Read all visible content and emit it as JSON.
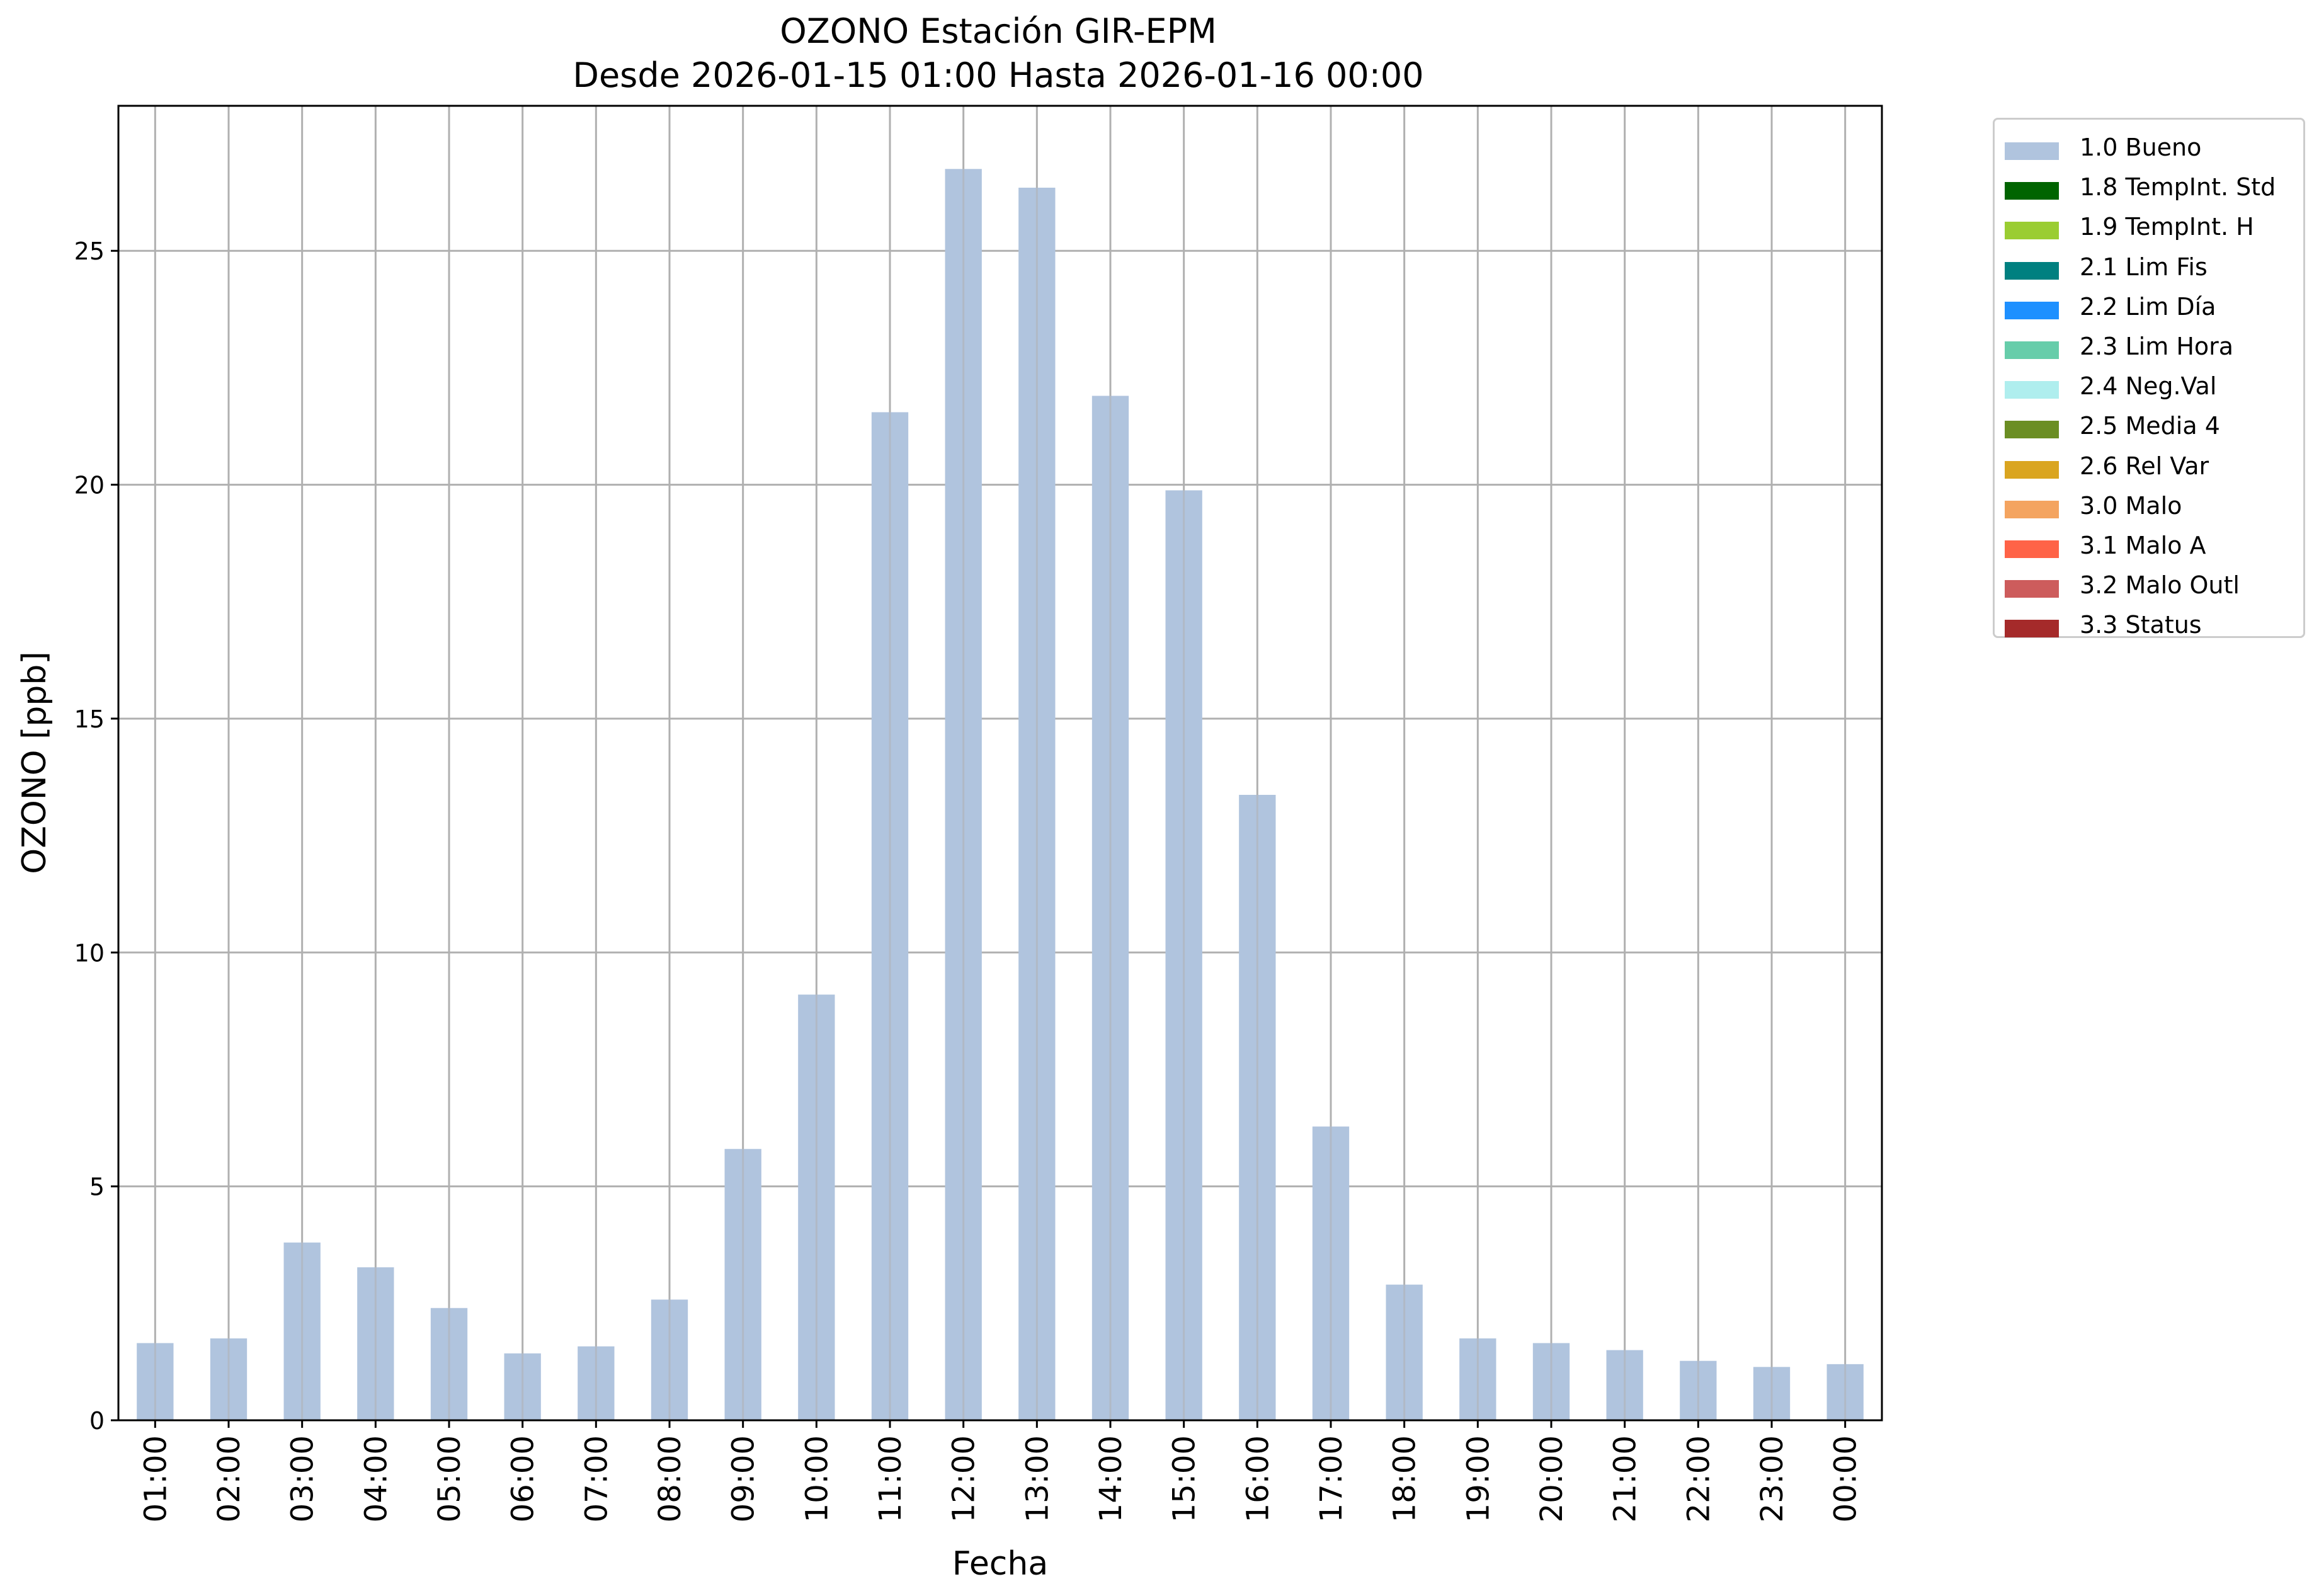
{
  "chart_data": {
    "type": "bar",
    "title": "OZONO Estación GIR-EPM",
    "subtitle": "Desde 2026-01-15 01:00 Hasta 2026-01-16 00:00",
    "xlabel": "Fecha",
    "ylabel": "OZONO [ppb]",
    "ylim": [
      0,
      28.1
    ],
    "yticks": [
      0,
      5,
      10,
      15,
      20,
      25
    ],
    "grid": true,
    "legend_position": "outside-top-right",
    "categories": [
      "01:00",
      "02:00",
      "03:00",
      "04:00",
      "05:00",
      "06:00",
      "07:00",
      "08:00",
      "09:00",
      "10:00",
      "11:00",
      "12:00",
      "13:00",
      "14:00",
      "15:00",
      "16:00",
      "17:00",
      "18:00",
      "19:00",
      "20:00",
      "21:00",
      "22:00",
      "23:00",
      "00:00"
    ],
    "series": [
      {
        "name": "1.0 Bueno",
        "color": "#b0c4de",
        "values": [
          1.65,
          1.75,
          3.8,
          3.27,
          2.4,
          1.43,
          1.58,
          2.58,
          5.8,
          9.1,
          21.55,
          26.75,
          26.35,
          21.9,
          19.88,
          13.37,
          6.28,
          2.9,
          1.75,
          1.65,
          1.5,
          1.27,
          1.14,
          1.2
        ]
      }
    ],
    "legend": [
      {
        "label": "1.0 Bueno",
        "color": "#b0c4de"
      },
      {
        "label": "1.8 TempInt. Std",
        "color": "#006400"
      },
      {
        "label": "1.9 TempInt. H",
        "color": "#9acd32"
      },
      {
        "label": "2.1 Lim Fis",
        "color": "#008080"
      },
      {
        "label": "2.2 Lim Día",
        "color": "#1e90ff"
      },
      {
        "label": "2.3 Lim Hora",
        "color": "#66cdaa"
      },
      {
        "label": "2.4 Neg.Val",
        "color": "#afeeee"
      },
      {
        "label": "2.5 Media 4",
        "color": "#6b8e23"
      },
      {
        "label": "2.6 Rel Var",
        "color": "#daa520"
      },
      {
        "label": "3.0 Malo",
        "color": "#f4a460"
      },
      {
        "label": "3.1 Malo A",
        "color": "#ff6347"
      },
      {
        "label": "3.2 Malo Outl",
        "color": "#cd5c5c"
      },
      {
        "label": "3.3 Status",
        "color": "#a52a2a"
      }
    ]
  }
}
